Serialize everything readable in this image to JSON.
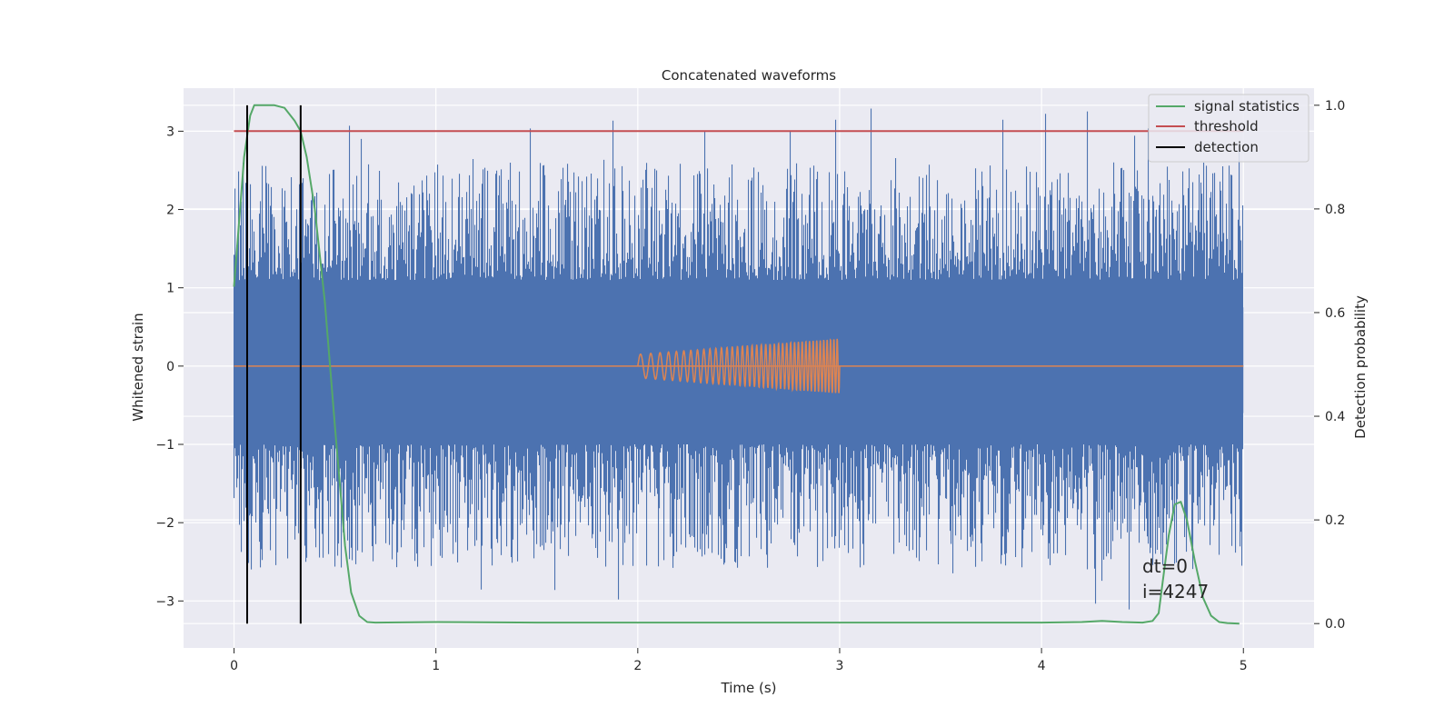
{
  "chart_data": {
    "type": "line",
    "title": "Concatenated waveforms",
    "xlabel": "Time (s)",
    "ylabel": "Whitened strain",
    "ylabel_right": "Detection probability",
    "xlim": [
      -0.25,
      5.35
    ],
    "ylim": [
      -3.6,
      3.55
    ],
    "ylim_right": [
      -0.047,
      1.033
    ],
    "x_ticks": [
      0,
      1,
      2,
      3,
      4,
      5
    ],
    "y_ticks": [
      -3,
      -2,
      -1,
      0,
      1,
      2,
      3
    ],
    "y_ticks_right": [
      0.0,
      0.2,
      0.4,
      0.6,
      0.8,
      1.0
    ],
    "x_tick_labels": [
      "0",
      "1",
      "2",
      "3",
      "4",
      "5"
    ],
    "y_tick_labels": [
      "−3",
      "−2",
      "−1",
      "0",
      "1",
      "2",
      "3"
    ],
    "y_tick_labels_right": [
      "0.0",
      "0.2",
      "0.4",
      "0.6",
      "0.8",
      "1.0"
    ],
    "grid": true,
    "legend_position": "top-right",
    "colors": {
      "strain": "#4c72b0",
      "template": "#dd8452",
      "signal_statistics": "#55a868",
      "threshold": "#c44e52",
      "detection": "#000000",
      "background": "#eaeaf2"
    },
    "series": [
      {
        "name": "signal statistics",
        "axis": "right",
        "x": [
          0.0,
          0.02,
          0.05,
          0.08,
          0.1,
          0.12,
          0.15,
          0.2,
          0.25,
          0.3,
          0.33,
          0.36,
          0.4,
          0.45,
          0.5,
          0.55,
          0.58,
          0.62,
          0.66,
          0.7,
          1.0,
          1.5,
          2.0,
          3.0,
          4.0,
          4.2,
          4.3,
          4.4,
          4.5,
          4.55,
          4.58,
          4.6,
          4.63,
          4.66,
          4.69,
          4.72,
          4.76,
          4.8,
          4.84,
          4.88,
          4.92,
          4.98
        ],
        "values": [
          0.65,
          0.75,
          0.9,
          0.98,
          1.0,
          1.0,
          1.0,
          1.0,
          0.995,
          0.97,
          0.95,
          0.9,
          0.8,
          0.62,
          0.38,
          0.15,
          0.06,
          0.015,
          0.003,
          0.002,
          0.003,
          0.002,
          0.002,
          0.002,
          0.002,
          0.003,
          0.005,
          0.003,
          0.002,
          0.005,
          0.02,
          0.08,
          0.17,
          0.23,
          0.235,
          0.2,
          0.12,
          0.05,
          0.015,
          0.003,
          0.001,
          0.0
        ]
      },
      {
        "name": "threshold",
        "axis": "right",
        "x": [
          0.0,
          5.0
        ],
        "values": [
          0.95,
          0.95
        ]
      },
      {
        "name": "detection",
        "axis": "right",
        "type": "vlines",
        "x": [
          0.065,
          0.33
        ],
        "ymin": 0.0,
        "ymax": 1.0
      }
    ],
    "strain_noise": {
      "x_range": [
        0.0,
        5.0
      ],
      "core_range": [
        -0.6,
        0.75
      ],
      "peak_max": 3.3,
      "peak_min": -3.25
    },
    "template_chirp": {
      "x_range": [
        2.0,
        3.0
      ],
      "amplitude_range": [
        0.15,
        0.35
      ]
    },
    "annotations": [
      "dt=0",
      "i=4247"
    ]
  }
}
